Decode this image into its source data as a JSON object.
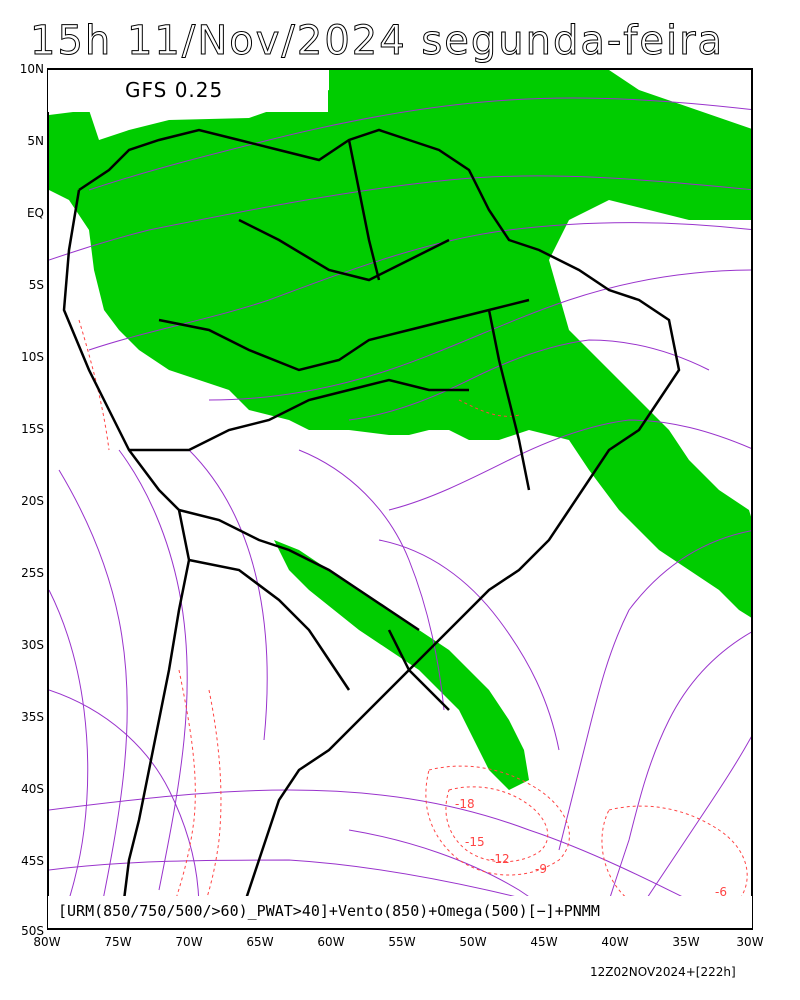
{
  "title": "15h 11/Nov/2024 segunda-feira",
  "model": "GFS 0.25",
  "legend": "[URM(850/750/500/>60)_PWAT>40]+Vento(850)+Omega(500)[−]+PNMM",
  "run_info": "12Z02NOV2024+[222h]",
  "lat_labels": [
    "10N",
    "5N",
    "EQ",
    "5S",
    "10S",
    "15S",
    "20S",
    "25S",
    "30S",
    "35S",
    "40S",
    "45S",
    "50S"
  ],
  "lon_labels": [
    "80W",
    "75W",
    "70W",
    "65W",
    "60W",
    "55W",
    "50W",
    "45W",
    "40W",
    "35W",
    "30W"
  ],
  "contour_labels": [
    "-18",
    "-15",
    "-12",
    "-9",
    "-6"
  ],
  "colors": {
    "humid_area": "#00cc00",
    "streamlines": "#9933cc",
    "omega_contours": "#ff4444",
    "borders": "#000000"
  }
}
